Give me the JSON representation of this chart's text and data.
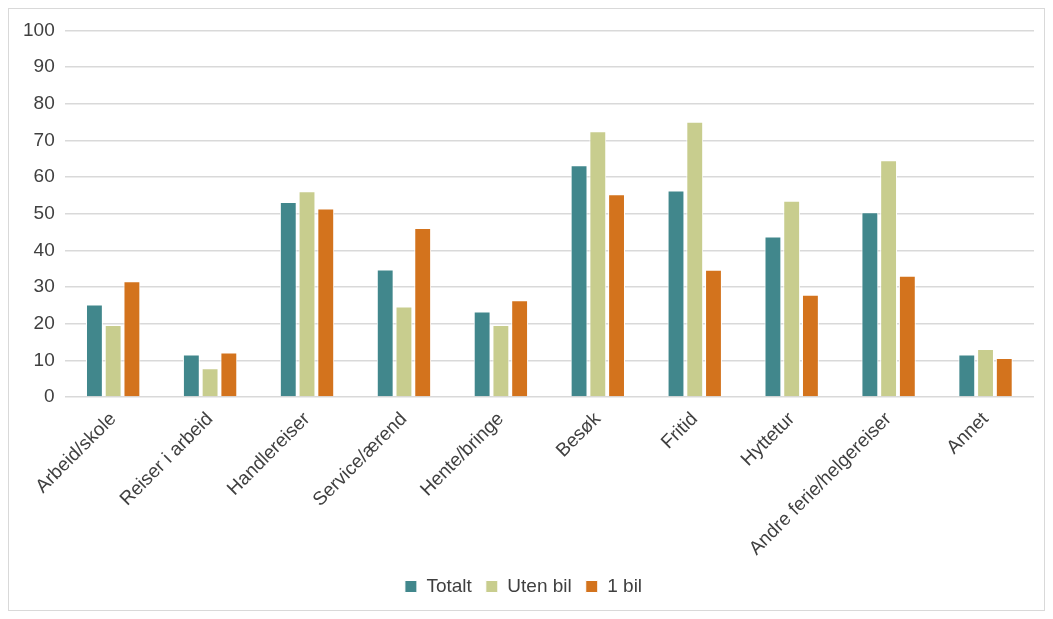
{
  "chart_data": {
    "type": "bar",
    "categories": [
      "Arbeid/skole",
      "Reiser i arbeid",
      "Handlereiser",
      "Service/ærend",
      "Hente/bringe",
      "Besøk",
      "Fritid",
      "Hyttetur",
      "Andre ferie/helgereiser",
      "Annet"
    ],
    "series": [
      {
        "name": "Totalt",
        "color": "#41878c",
        "values": [
          25.2,
          11.6,
          53.2,
          34.8,
          23.3,
          63.2,
          56.3,
          43.8,
          50.4,
          11.6
        ]
      },
      {
        "name": "Uten bil",
        "color": "#c8cd8e",
        "values": [
          19.6,
          7.8,
          56.1,
          24.7,
          19.6,
          72.5,
          75.1,
          53.5,
          64.6,
          13.1
        ]
      },
      {
        "name": "1 bil",
        "color": "#d3731d",
        "values": [
          31.6,
          12.1,
          51.4,
          46.1,
          26.4,
          55.3,
          34.7,
          27.9,
          33.1,
          10.6
        ]
      }
    ],
    "ylim": [
      0,
      100
    ],
    "yticks": [
      0,
      10,
      20,
      30,
      40,
      50,
      60,
      70,
      80,
      90,
      100
    ],
    "grid": "y",
    "legend": "bottom"
  }
}
